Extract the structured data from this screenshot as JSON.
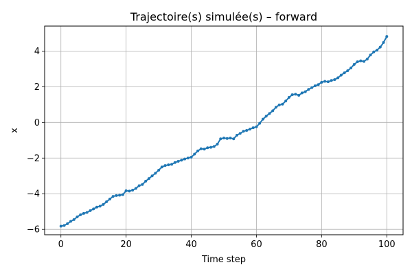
{
  "chart_data": {
    "type": "line",
    "title": "Trajectoire(s) simulée(s) – forward",
    "xlabel": "Time step",
    "ylabel": "x",
    "xlim": [
      -5,
      105
    ],
    "ylim": [
      -6.3,
      5.4
    ],
    "grid": true,
    "colors": {
      "series": "#1f77b4",
      "grid": "#b0b0b0",
      "axes": "#000000"
    },
    "x_ticks": [
      {
        "value": 0,
        "label": "0"
      },
      {
        "value": 20,
        "label": "20"
      },
      {
        "value": 40,
        "label": "40"
      },
      {
        "value": 60,
        "label": "60"
      },
      {
        "value": 80,
        "label": "80"
      },
      {
        "value": 100,
        "label": "100"
      }
    ],
    "y_ticks": [
      {
        "value": -6,
        "label": "−6"
      },
      {
        "value": -4,
        "label": "−4"
      },
      {
        "value": -2,
        "label": "−2"
      },
      {
        "value": 0,
        "label": "0"
      },
      {
        "value": 2,
        "label": "2"
      },
      {
        "value": 4,
        "label": "4"
      }
    ],
    "series": [
      {
        "x": [
          0,
          1,
          2,
          3,
          4,
          5,
          6,
          7,
          8,
          9,
          10,
          11,
          12,
          13,
          14,
          15,
          16,
          17,
          18,
          19,
          20,
          21,
          22,
          23,
          24,
          25,
          26,
          27,
          28,
          29,
          30,
          31,
          32,
          33,
          34,
          35,
          36,
          37,
          38,
          39,
          40,
          41,
          42,
          43,
          44,
          45,
          46,
          47,
          48,
          49,
          50,
          51,
          52,
          53,
          54,
          55,
          56,
          57,
          58,
          59,
          60,
          61,
          62,
          63,
          64,
          65,
          66,
          67,
          68,
          69,
          70,
          71,
          72,
          73,
          74,
          75,
          76,
          77,
          78,
          79,
          80,
          81,
          82,
          83,
          84,
          85,
          86,
          87,
          88,
          89,
          90,
          91,
          92,
          93,
          94,
          95,
          96,
          97,
          98,
          99,
          100
        ],
        "values": [
          -5.82,
          -5.78,
          -5.68,
          -5.55,
          -5.45,
          -5.3,
          -5.18,
          -5.1,
          -5.05,
          -4.95,
          -4.85,
          -4.75,
          -4.7,
          -4.6,
          -4.45,
          -4.3,
          -4.15,
          -4.1,
          -4.08,
          -4.05,
          -3.83,
          -3.85,
          -3.8,
          -3.7,
          -3.55,
          -3.48,
          -3.3,
          -3.15,
          -3.0,
          -2.85,
          -2.68,
          -2.5,
          -2.42,
          -2.38,
          -2.35,
          -2.25,
          -2.18,
          -2.12,
          -2.05,
          -2.0,
          -1.95,
          -1.78,
          -1.6,
          -1.48,
          -1.5,
          -1.42,
          -1.4,
          -1.35,
          -1.22,
          -0.92,
          -0.88,
          -0.9,
          -0.88,
          -0.92,
          -0.72,
          -0.62,
          -0.5,
          -0.45,
          -0.38,
          -0.3,
          -0.25,
          -0.05,
          0.18,
          0.35,
          0.5,
          0.65,
          0.85,
          0.98,
          1.02,
          1.2,
          1.4,
          1.55,
          1.58,
          1.52,
          1.65,
          1.72,
          1.85,
          1.95,
          2.05,
          2.12,
          2.25,
          2.3,
          2.28,
          2.35,
          2.4,
          2.5,
          2.65,
          2.78,
          2.9,
          3.05,
          3.25,
          3.4,
          3.45,
          3.42,
          3.55,
          3.78,
          3.95,
          4.05,
          4.22,
          4.48,
          4.82
        ]
      }
    ]
  }
}
